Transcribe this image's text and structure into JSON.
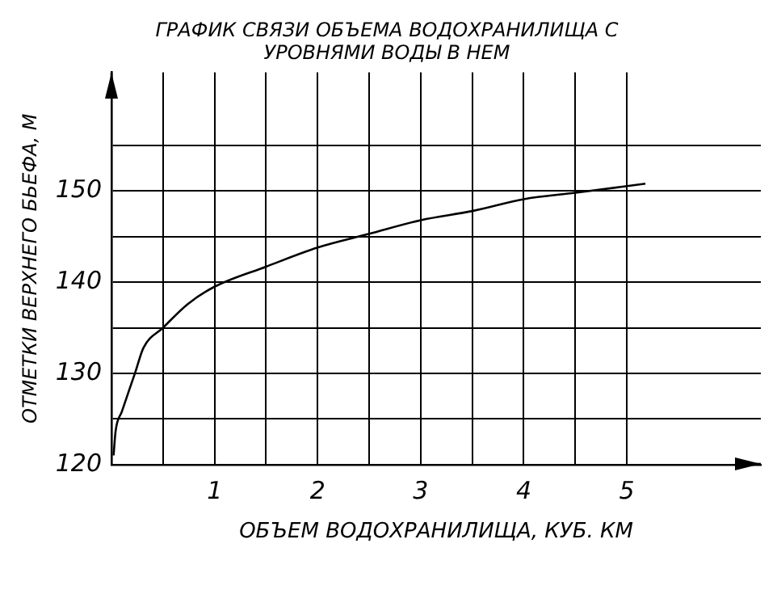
{
  "chart_data": {
    "type": "line",
    "title": [
      "ГРАФИК СВЯЗИ ОБЪЕМА ВОДОХРАНИЛИЩА С",
      "УРОВНЯМИ ВОДЫ В НЕМ"
    ],
    "xlabel": "ОБЪЕМ ВОДОХРАНИЛИЩА, КУБ. КМ",
    "ylabel": "ОТМЕТКИ ВЕРХНЕГО БЬЕФА, М",
    "x": [
      0.02,
      0.04,
      0.1,
      0.23,
      0.31,
      0.5,
      0.74,
      1.0,
      1.5,
      2.0,
      2.5,
      3.0,
      3.5,
      4.0,
      4.5,
      5.18
    ],
    "series": [
      {
        "color": "#000000",
        "values": [
          121,
          123.7,
          125.8,
          130.1,
          132.8,
          135,
          137.6,
          139.5,
          141.7,
          143.8,
          145.3,
          146.8,
          147.8,
          149.1,
          149.8,
          150.8
        ]
      }
    ],
    "xlim": [
      0,
      6.3
    ],
    "ylim": [
      120,
      163
    ],
    "xticks": [
      {
        "value": 0,
        "label": null
      },
      {
        "value": 0.5,
        "label": null
      },
      1,
      {
        "value": 1.5,
        "label": null
      },
      2,
      {
        "value": 2.5,
        "label": null
      },
      3,
      {
        "value": 3.5,
        "label": null
      },
      4,
      {
        "value": 4.5,
        "label": null
      },
      5
    ],
    "yticks": [
      120,
      {
        "value": 125,
        "label": null
      },
      130,
      {
        "value": 135,
        "label": null
      },
      140,
      {
        "value": 145,
        "label": null
      },
      150,
      {
        "value": 155,
        "label": null
      }
    ],
    "grid": true,
    "marker": "none",
    "line_style": "solid",
    "legend": false
  }
}
